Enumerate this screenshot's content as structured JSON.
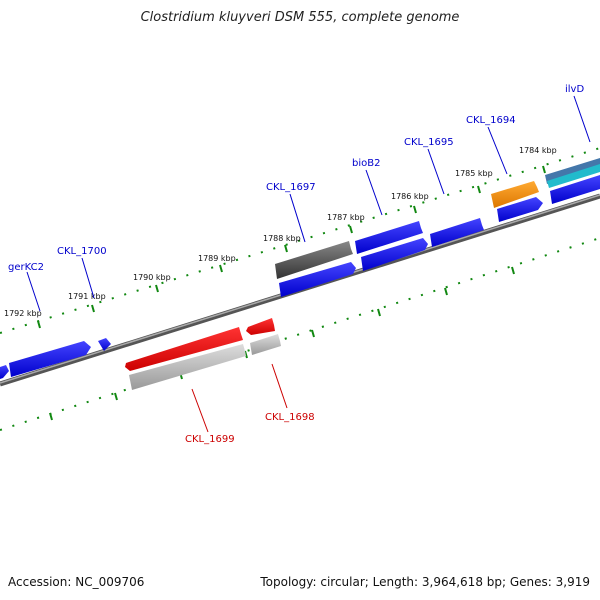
{
  "title": "Clostridium kluyveri DSM 555, complete genome",
  "footer": {
    "accession": "Accession: NC_009706",
    "stats": "Topology: circular; Length: 3,964,618 bp; Genes: 3,919"
  },
  "scale_labels": [
    "1792 kbp",
    "1791 kbp",
    "1790 kbp",
    "1789 kbp",
    "1788 kbp",
    "1787 kbp",
    "1786 kbp",
    "1785 kbp",
    "1784 kbp"
  ],
  "gene_labels": [
    "gerKC2",
    "CKL_1700",
    "CKL_1697",
    "bioB2",
    "CKL_1695",
    "CKL_1694",
    "ilvD",
    "CKL_1699",
    "CKL_1698"
  ],
  "colors": {
    "forward_gene": "#0000dd",
    "reverse_gene": "#dd0000",
    "reverse_pseudo": "#aaaaaa",
    "forward_dark": "#555555",
    "orange_gene": "#f08000",
    "teal_gene": "#22bbcc",
    "steel_gene": "#4477aa",
    "backbone": "#777777",
    "tick": "#118811",
    "forward_label": "#0000cc",
    "reverse_label": "#cc0000"
  }
}
